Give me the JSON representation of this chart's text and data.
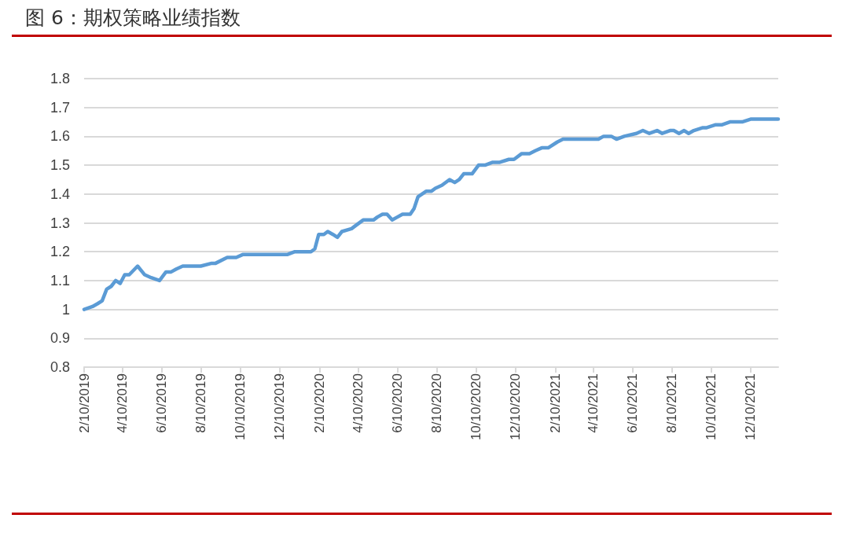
{
  "chart_data": {
    "type": "line",
    "title": "图 6：期权策略业绩指数",
    "x": [
      "2019-02-10",
      "2019-02-23",
      "2019-03-03",
      "2019-03-10",
      "2019-03-17",
      "2019-03-24",
      "2019-03-31",
      "2019-04-07",
      "2019-04-14",
      "2019-04-21",
      "2019-05-04",
      "2019-05-15",
      "2019-05-25",
      "2019-06-07",
      "2019-06-17",
      "2019-06-25",
      "2019-07-03",
      "2019-07-13",
      "2019-07-19",
      "2019-07-27",
      "2019-08-10",
      "2019-08-27",
      "2019-09-02",
      "2019-09-20",
      "2019-09-28",
      "2019-10-04",
      "2019-10-14",
      "2019-10-30",
      "2019-11-16",
      "2019-11-24",
      "2019-12-06",
      "2019-12-22",
      "2020-01-03",
      "2020-01-11",
      "2020-01-19",
      "2020-01-28",
      "2020-02-03",
      "2020-02-09",
      "2020-02-17",
      "2020-02-23",
      "2020-03-02",
      "2020-03-09",
      "2020-03-16",
      "2020-03-31",
      "2020-04-06",
      "2020-04-18",
      "2020-04-26",
      "2020-05-04",
      "2020-05-10",
      "2020-05-18",
      "2020-05-25",
      "2020-06-02",
      "2020-06-10",
      "2020-06-18",
      "2020-06-24",
      "2020-06-30",
      "2020-07-06",
      "2020-07-12",
      "2020-07-25",
      "2020-08-02",
      "2020-08-08",
      "2020-08-18",
      "2020-08-30",
      "2020-09-07",
      "2020-09-14",
      "2020-09-21",
      "2020-10-04",
      "2020-10-14",
      "2020-10-24",
      "2020-11-05",
      "2020-11-16",
      "2020-11-30",
      "2020-12-08",
      "2020-12-20",
      "2021-01-01",
      "2021-01-10",
      "2021-01-20",
      "2021-01-30",
      "2021-02-13",
      "2021-02-22",
      "2021-02-28",
      "2021-03-12",
      "2021-03-25",
      "2021-04-06",
      "2021-04-18",
      "2021-04-26",
      "2021-05-08",
      "2021-05-16",
      "2021-05-28",
      "2021-06-16",
      "2021-06-26",
      "2021-07-06",
      "2021-07-18",
      "2021-07-26",
      "2021-08-07",
      "2021-08-13",
      "2021-08-21",
      "2021-08-29",
      "2021-09-05",
      "2021-09-13",
      "2021-09-27",
      "2021-10-03",
      "2021-10-17",
      "2021-10-27",
      "2021-11-08",
      "2021-11-27",
      "2021-12-11",
      "2021-12-19",
      "2022-01-02",
      "2022-01-16",
      "2022-01-22"
    ],
    "series": [
      {
        "color": "#5b9bd5",
        "values": [
          1.0,
          1.01,
          1.02,
          1.03,
          1.07,
          1.08,
          1.1,
          1.09,
          1.12,
          1.12,
          1.15,
          1.12,
          1.11,
          1.1,
          1.13,
          1.13,
          1.14,
          1.15,
          1.15,
          1.15,
          1.15,
          1.16,
          1.16,
          1.18,
          1.18,
          1.18,
          1.19,
          1.19,
          1.19,
          1.19,
          1.19,
          1.19,
          1.2,
          1.2,
          1.2,
          1.2,
          1.21,
          1.26,
          1.26,
          1.27,
          1.26,
          1.25,
          1.27,
          1.28,
          1.29,
          1.31,
          1.31,
          1.31,
          1.32,
          1.33,
          1.33,
          1.31,
          1.32,
          1.33,
          1.33,
          1.33,
          1.35,
          1.39,
          1.41,
          1.41,
          1.42,
          1.43,
          1.45,
          1.44,
          1.45,
          1.47,
          1.47,
          1.5,
          1.5,
          1.51,
          1.51,
          1.52,
          1.52,
          1.54,
          1.54,
          1.55,
          1.56,
          1.56,
          1.58,
          1.59,
          1.59,
          1.59,
          1.59,
          1.59,
          1.59,
          1.6,
          1.6,
          1.59,
          1.6,
          1.61,
          1.62,
          1.61,
          1.62,
          1.61,
          1.62,
          1.62,
          1.61,
          1.62,
          1.61,
          1.62,
          1.63,
          1.63,
          1.64,
          1.64,
          1.65,
          1.65,
          1.66,
          1.66,
          1.66,
          1.66,
          1.66
        ]
      }
    ],
    "xlim": [
      "2019-02-10",
      "2022-01-22"
    ],
    "xticks": [
      {
        "value": "2019-02-10",
        "label": "2/10/2019"
      },
      {
        "value": "2019-04-10",
        "label": "4/10/2019"
      },
      {
        "value": "2019-06-10",
        "label": "6/10/2019"
      },
      {
        "value": "2019-08-10",
        "label": "8/10/2019"
      },
      {
        "value": "2019-10-10",
        "label": "10/10/2019"
      },
      {
        "value": "2019-12-10",
        "label": "12/10/2019"
      },
      {
        "value": "2020-02-10",
        "label": "2/10/2020"
      },
      {
        "value": "2020-04-10",
        "label": "4/10/2020"
      },
      {
        "value": "2020-06-10",
        "label": "6/10/2020"
      },
      {
        "value": "2020-08-10",
        "label": "8/10/2020"
      },
      {
        "value": "2020-10-10",
        "label": "10/10/2020"
      },
      {
        "value": "2020-12-10",
        "label": "12/10/2020"
      },
      {
        "value": "2021-02-10",
        "label": "2/10/2021"
      },
      {
        "value": "2021-04-10",
        "label": "4/10/2021"
      },
      {
        "value": "2021-06-10",
        "label": "6/10/2021"
      },
      {
        "value": "2021-08-10",
        "label": "8/10/2021"
      },
      {
        "value": "2021-10-10",
        "label": "10/10/2021"
      },
      {
        "value": "2021-12-10",
        "label": "12/10/2021"
      }
    ],
    "ylim": [
      0.8,
      1.8
    ],
    "yticks": [
      0.8,
      0.9,
      1,
      1.1,
      1.2,
      1.3,
      1.4,
      1.5,
      1.6,
      1.7,
      1.8
    ],
    "grid": "y",
    "marker": "none",
    "line_style": "solid"
  }
}
